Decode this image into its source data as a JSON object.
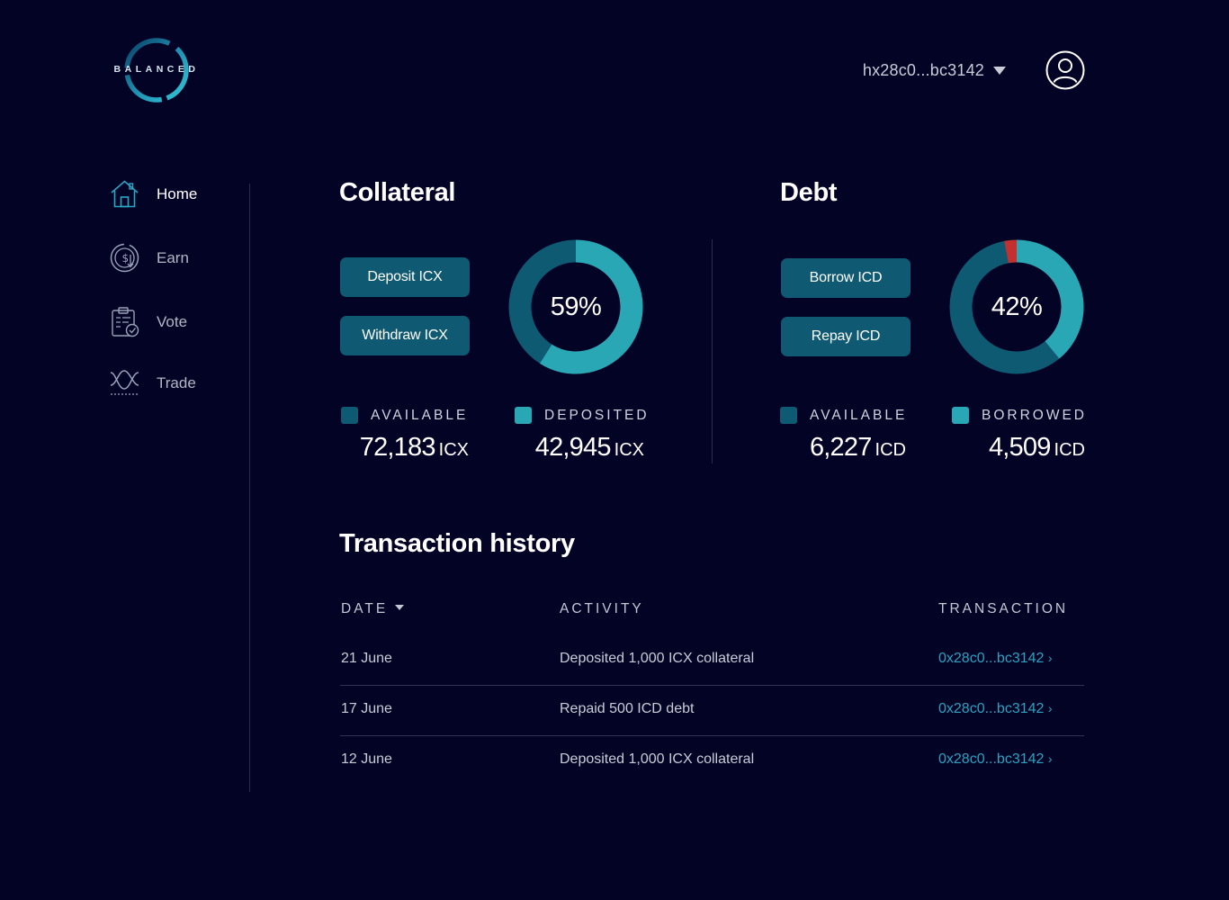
{
  "app": {
    "logo_text": "BALANCED"
  },
  "header": {
    "wallet_address": "hx28c0...bc3142"
  },
  "sidebar": {
    "items": [
      {
        "label": "Home",
        "icon": "home-icon",
        "active": true
      },
      {
        "label": "Earn",
        "icon": "earn-icon",
        "active": false
      },
      {
        "label": "Vote",
        "icon": "vote-icon",
        "active": false
      },
      {
        "label": "Trade",
        "icon": "trade-icon",
        "active": false
      }
    ]
  },
  "collateral": {
    "title": "Collateral",
    "deposit_label": "Deposit ICX",
    "withdraw_label": "Withdraw ICX",
    "percent_label": "59%",
    "percent": 59,
    "available_label": "AVAILABLE",
    "available_value": "72,183",
    "available_unit": "ICX",
    "deposited_label": "DEPOSITED",
    "deposited_value": "42,945",
    "deposited_unit": "ICX"
  },
  "debt": {
    "title": "Debt",
    "borrow_label": "Borrow ICD",
    "repay_label": "Repay ICD",
    "percent_label": "42%",
    "percent": 42,
    "red_zone_percent": 3,
    "available_label": "AVAILABLE",
    "available_value": "6,227",
    "available_unit": "ICD",
    "borrowed_label": "BORROWED",
    "borrowed_value": "4,509",
    "borrowed_unit": "ICD"
  },
  "transactions": {
    "title": "Transaction history",
    "columns": {
      "date": "DATE",
      "activity": "ACTIVITY",
      "transaction": "TRANSACTION"
    },
    "rows": [
      {
        "date": "21 June",
        "activity": "Deposited 1,000 ICX collateral",
        "tx": "0x28c0...bc3142"
      },
      {
        "date": "17 June",
        "activity": "Repaid 500 ICD debt",
        "tx": "0x28c0...bc3142"
      },
      {
        "date": "12 June",
        "activity": "Deposited 1,000 ICX collateral",
        "tx": "0x28c0...bc3142"
      }
    ]
  },
  "colors": {
    "background": "#030326",
    "accent": "#2aa7b5",
    "dark_teal": "#0e5a73",
    "danger": "#c2302f",
    "link": "#2aa2c0"
  }
}
